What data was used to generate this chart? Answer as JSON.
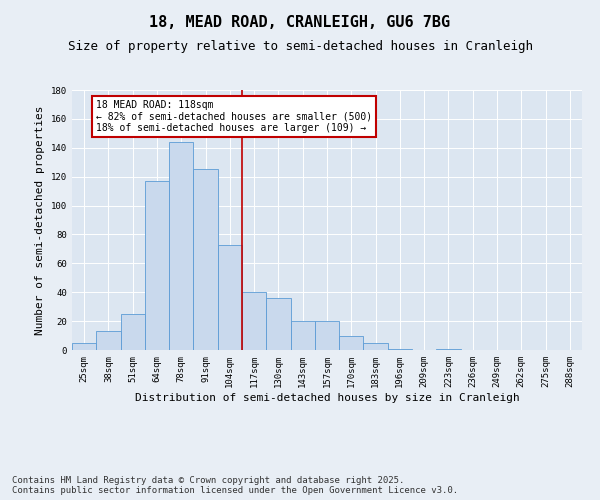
{
  "title": "18, MEAD ROAD, CRANLEIGH, GU6 7BG",
  "subtitle": "Size of property relative to semi-detached houses in Cranleigh",
  "xlabel": "Distribution of semi-detached houses by size in Cranleigh",
  "ylabel": "Number of semi-detached properties",
  "categories": [
    "25sqm",
    "38sqm",
    "51sqm",
    "64sqm",
    "78sqm",
    "91sqm",
    "104sqm",
    "117sqm",
    "130sqm",
    "143sqm",
    "157sqm",
    "170sqm",
    "183sqm",
    "196sqm",
    "209sqm",
    "223sqm",
    "236sqm",
    "249sqm",
    "262sqm",
    "275sqm",
    "288sqm"
  ],
  "bar_heights": [
    5,
    13,
    25,
    117,
    144,
    125,
    73,
    40,
    36,
    20,
    20,
    10,
    5,
    1,
    0,
    1,
    0,
    0,
    0,
    0,
    0
  ],
  "bar_color": "#c9d9ed",
  "bar_edge_color": "#5b9bd5",
  "vline_color": "#c00000",
  "vline_x": 6.5,
  "annotation_title": "18 MEAD ROAD: 118sqm",
  "annotation_line1": "← 82% of semi-detached houses are smaller (500)",
  "annotation_line2": "18% of semi-detached houses are larger (109) →",
  "annotation_box_color": "#c00000",
  "ylim": [
    0,
    180
  ],
  "yticks": [
    0,
    20,
    40,
    60,
    80,
    100,
    120,
    140,
    160,
    180
  ],
  "background_color": "#e8eef5",
  "plot_background_color": "#dce6f1",
  "grid_color": "#ffffff",
  "footer1": "Contains HM Land Registry data © Crown copyright and database right 2025.",
  "footer2": "Contains public sector information licensed under the Open Government Licence v3.0.",
  "title_fontsize": 11,
  "subtitle_fontsize": 9,
  "axis_label_fontsize": 8,
  "tick_fontsize": 6.5,
  "annotation_fontsize": 7,
  "footer_fontsize": 6.5
}
